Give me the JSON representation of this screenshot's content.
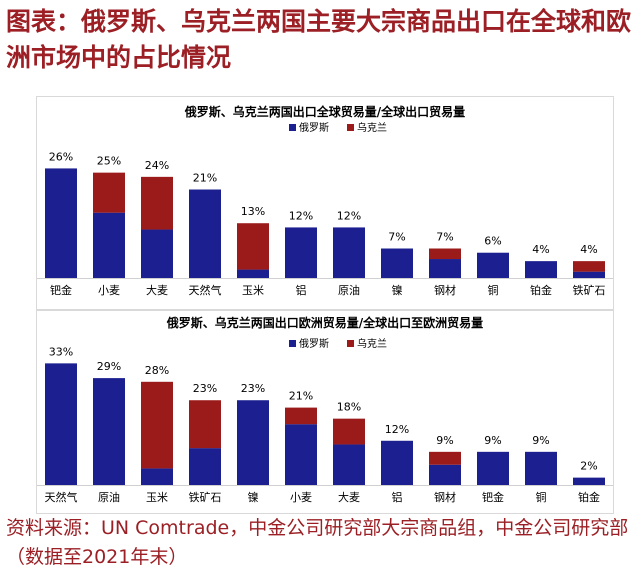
{
  "title": "图表：俄罗斯、乌克兰两国主要大宗商品出口在全球和欧洲市场中的占比情况",
  "source": "资料来源：UN Comtrade，中金公司研究部大宗商品组，中金公司研究部（数据至2021年末）",
  "colors": {
    "russia": "#1b1f8f",
    "ukraine": "#9b1b1b"
  },
  "chart_data": [
    {
      "type": "bar",
      "stacked": true,
      "title": "俄罗斯、乌克兰两国出口全球贸易量/全球出口贸易量",
      "legend": [
        "俄罗斯",
        "乌克兰"
      ],
      "categories": [
        "钯金",
        "小麦",
        "大麦",
        "天然气",
        "玉米",
        "铝",
        "原油",
        "镍",
        "钢材",
        "铜",
        "铂金",
        "铁矿石"
      ],
      "total_labels": [
        "26%",
        "25%",
        "24%",
        "21%",
        "13%",
        "12%",
        "12%",
        "7%",
        "7%",
        "6%",
        "4%",
        "4%"
      ],
      "series": [
        {
          "name": "俄罗斯",
          "values": [
            26,
            15.5,
            11.5,
            21,
            2,
            12,
            12,
            7,
            4.5,
            6,
            4,
            1.5
          ]
        },
        {
          "name": "乌克兰",
          "values": [
            0,
            9.5,
            12.5,
            0,
            11,
            0,
            0,
            0,
            2.5,
            0,
            0,
            2.5
          ]
        }
      ],
      "ylim": [
        0,
        28
      ],
      "legend_position": "top-right"
    },
    {
      "type": "bar",
      "stacked": true,
      "title": "俄罗斯、乌克兰两国出口欧洲贸易量/全球出口至欧洲贸易量",
      "legend": [
        "俄罗斯",
        "乌克兰"
      ],
      "categories": [
        "天然气",
        "原油",
        "玉米",
        "铁矿石",
        "镍",
        "小麦",
        "大麦",
        "铝",
        "钢材",
        "钯金",
        "铜",
        "铂金"
      ],
      "total_labels": [
        "33%",
        "29%",
        "28%",
        "23%",
        "23%",
        "21%",
        "18%",
        "12%",
        "9%",
        "9%",
        "9%",
        "2%"
      ],
      "series": [
        {
          "name": "俄罗斯",
          "values": [
            33,
            29,
            4.5,
            10,
            23,
            16.5,
            11,
            12,
            5.5,
            9,
            9,
            2
          ]
        },
        {
          "name": "乌克兰",
          "values": [
            0,
            0,
            23.5,
            13,
            0,
            4.5,
            7,
            0,
            3.5,
            0,
            0,
            0
          ]
        }
      ],
      "ylim": [
        0,
        35
      ],
      "legend_position": "top-right"
    }
  ]
}
